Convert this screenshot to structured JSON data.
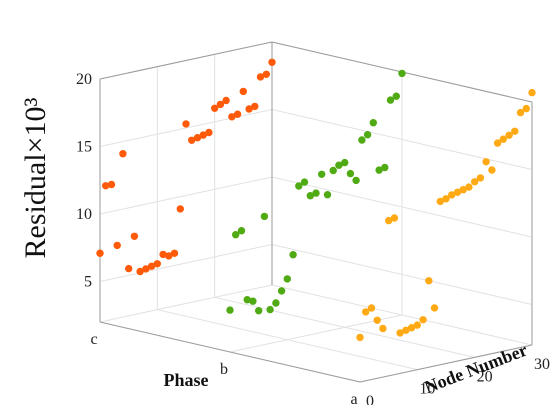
{
  "chart_data": {
    "type": "scatter",
    "title": "",
    "ylabel": "Residual×10³",
    "xlabel": "Phase",
    "zlabel": "Node Number",
    "ylim": [
      2,
      20
    ],
    "y_ticks": [
      "5",
      "10",
      "15",
      "20"
    ],
    "x_ticks": [
      "c",
      "b",
      "a"
    ],
    "z_ticks": [
      "0",
      "10",
      "20",
      "30"
    ],
    "grid": true,
    "series": [
      {
        "color": "#ff5a0a",
        "phase": "c",
        "x": [
          0,
          1,
          2,
          3,
          4,
          5,
          6,
          7,
          8,
          9,
          10,
          11,
          12,
          13,
          14,
          15,
          16,
          17,
          18,
          19,
          20,
          21,
          22,
          23,
          24,
          25,
          26,
          27,
          28,
          29,
          30
        ],
        "values": [
          7.1,
          12.0,
          12.0,
          7.4,
          14.1,
          5.5,
          7.8,
          5.1,
          5.2,
          5.3,
          5.4,
          6.0,
          5.8,
          5.9,
          9.1,
          15.3,
          14.0,
          14.1,
          14.2,
          14.3,
          16.0,
          16.2,
          16.4,
          15.1,
          15.2,
          16.8,
          15.4,
          15.5,
          17.6,
          17.7,
          18.5
        ]
      },
      {
        "color": "#50aa14",
        "phase": "b",
        "x": [
          0,
          1,
          2,
          3,
          4,
          5,
          6,
          7,
          8,
          9,
          10,
          11,
          12,
          13,
          14,
          15,
          16,
          17,
          18,
          19,
          20,
          21,
          22,
          23,
          24,
          25,
          26,
          27,
          28,
          29,
          30
        ],
        "values": [
          5.1,
          10.6,
          10.8,
          5.6,
          5.4,
          4.6,
          11.5,
          4.5,
          4.9,
          5.7,
          6.5,
          8.2,
          13.2,
          13.4,
          12.3,
          12.4,
          13.7,
          12.1,
          13.8,
          14.1,
          14.2,
          13.3,
          12.7,
          15.6,
          15.9,
          16.7,
          13.1,
          13.2,
          18.1,
          18.3,
          19.9
        ]
      },
      {
        "color": "#ffaa14",
        "phase": "a",
        "x": [
          0,
          1,
          2,
          3,
          4,
          5,
          6,
          7,
          8,
          9,
          10,
          11,
          12,
          13,
          14,
          15,
          16,
          17,
          18,
          19,
          20,
          21,
          22,
          23,
          24,
          25,
          26,
          27,
          28,
          29,
          30
        ],
        "values": [
          5.3,
          7.1,
          7.3,
          6.3,
          5.6,
          13.5,
          13.6,
          5.0,
          5.1,
          5.2,
          5.3,
          5.6,
          8.4,
          6.3,
          14.1,
          14.2,
          14.4,
          14.5,
          14.6,
          14.7,
          15.0,
          15.2,
          16.3,
          15.6,
          17.5,
          17.7,
          17.9,
          18.1,
          19.4,
          19.6,
          20.7
        ]
      }
    ]
  }
}
